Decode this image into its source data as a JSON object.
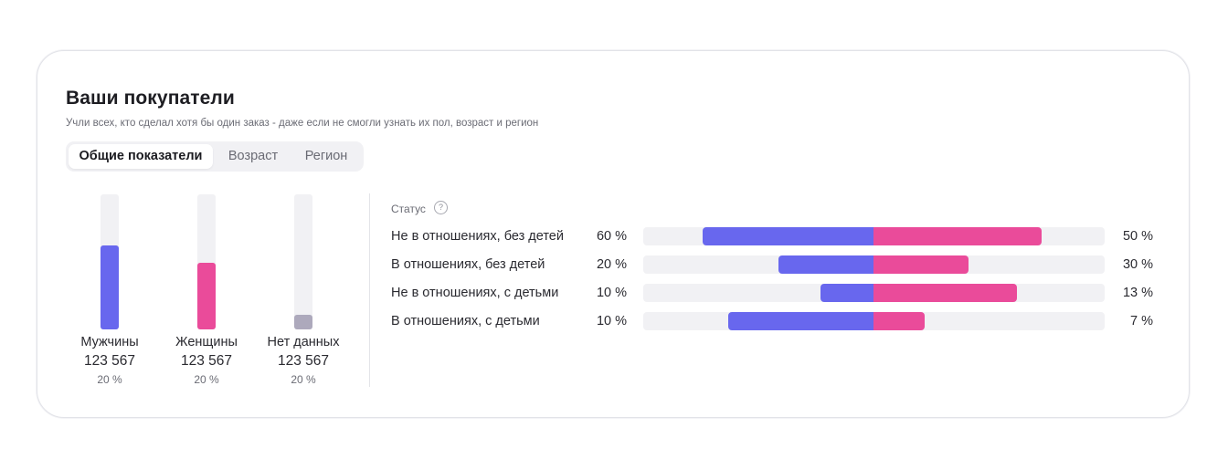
{
  "header": {
    "title": "Ваши покупатели",
    "subtitle": "Учли всех, кто сделал хотя бы один заказ - даже если не смогли узнать их пол, возраст и регион"
  },
  "tabs": [
    {
      "label": "Общие показатели",
      "active": true
    },
    {
      "label": "Возраст",
      "active": false
    },
    {
      "label": "Регион",
      "active": false
    }
  ],
  "colors": {
    "men": "#6867ee",
    "women": "#ea4b9a",
    "nodata": "#ada9bc",
    "track": "#f1f1f4"
  },
  "chart_data": [
    {
      "type": "bar",
      "categories": [
        "Мужчины",
        "Женщины",
        "Нет данных"
      ],
      "values": [
        123567,
        123567,
        123567
      ],
      "value_labels": [
        "123 567",
        "123 567",
        "123 567"
      ],
      "percent_labels": [
        "20 %",
        "20 %",
        "20 %"
      ],
      "fill_fractions": [
        0.62,
        0.49,
        0.11
      ],
      "colors": [
        "#6867ee",
        "#ea4b9a",
        "#ada9bc"
      ]
    },
    {
      "type": "bar",
      "orientation": "horizontal-diverging",
      "title": "Статус",
      "categories": [
        "Не в отношениях, без детей",
        "В отношениях, без детей",
        "Не в отношениях, с детьми",
        "В отношениях, с детьми"
      ],
      "series": [
        {
          "values": [
            60,
            20,
            10,
            10
          ],
          "labels": [
            "60 %",
            "20 %",
            "10 %",
            "10 %"
          ],
          "color": "#6867ee"
        },
        {
          "values": [
            50,
            30,
            13,
            7
          ],
          "labels": [
            "50 %",
            "30 %",
            "13 %",
            "7 %"
          ],
          "color": "#ea4b9a"
        }
      ],
      "bar_lengths": {
        "left": [
          0.74,
          0.41,
          0.23,
          0.63
        ],
        "right": [
          0.73,
          0.41,
          0.62,
          0.22
        ]
      }
    }
  ]
}
